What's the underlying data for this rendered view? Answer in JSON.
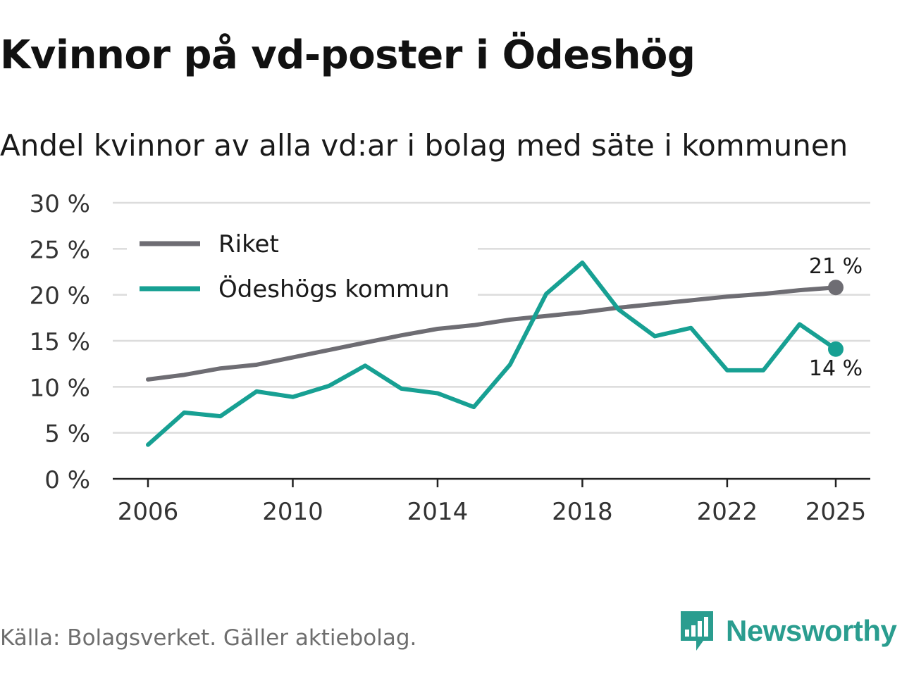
{
  "header": {
    "title": "Kvinnor på vd-poster i Ödeshög",
    "subtitle": "Andel kvinnor av alla vd:ar i bolag med säte i kommunen"
  },
  "footer": {
    "source": "Källa: Bolagsverket. Gäller aktiebolag."
  },
  "brand": {
    "name": "Newsworthy",
    "color": "#2a9d8f"
  },
  "chart_data": {
    "type": "line",
    "title": "Kvinnor på vd-poster i Ödeshög",
    "subtitle": "Andel kvinnor av alla vd:ar i bolag med säte i kommunen",
    "xlabel": "",
    "ylabel": "",
    "ylim": [
      0,
      30
    ],
    "yticks": [
      0,
      5,
      10,
      15,
      20,
      25,
      30
    ],
    "ytick_labels": [
      "0 %",
      "5 %",
      "10 %",
      "15 %",
      "20 %",
      "25 %",
      "30 %"
    ],
    "xticks": [
      2006,
      2010,
      2014,
      2018,
      2022,
      2025
    ],
    "xtick_labels": [
      "2006",
      "2010",
      "2014",
      "2018",
      "2022",
      "2025"
    ],
    "grid": true,
    "legend_position": "top-left",
    "x": [
      2006,
      2007,
      2008,
      2009,
      2010,
      2011,
      2012,
      2013,
      2014,
      2015,
      2016,
      2017,
      2018,
      2019,
      2020,
      2021,
      2022,
      2023,
      2024,
      2025
    ],
    "series": [
      {
        "name": "Riket",
        "color": "#6e6d73",
        "values": [
          10.8,
          11.3,
          12.0,
          12.4,
          13.2,
          14.0,
          14.8,
          15.6,
          16.3,
          16.7,
          17.3,
          17.7,
          18.1,
          18.6,
          19.0,
          19.4,
          19.8,
          20.1,
          20.5,
          20.8
        ],
        "end_label": "21 %"
      },
      {
        "name": "Ödeshögs kommun",
        "color": "#17a093",
        "values": [
          3.7,
          7.2,
          6.8,
          9.5,
          8.9,
          10.1,
          12.3,
          9.8,
          9.3,
          7.8,
          12.4,
          20.1,
          23.5,
          18.4,
          15.5,
          16.4,
          11.8,
          11.8,
          16.8,
          14.1
        ],
        "end_label": "14 %"
      }
    ]
  }
}
